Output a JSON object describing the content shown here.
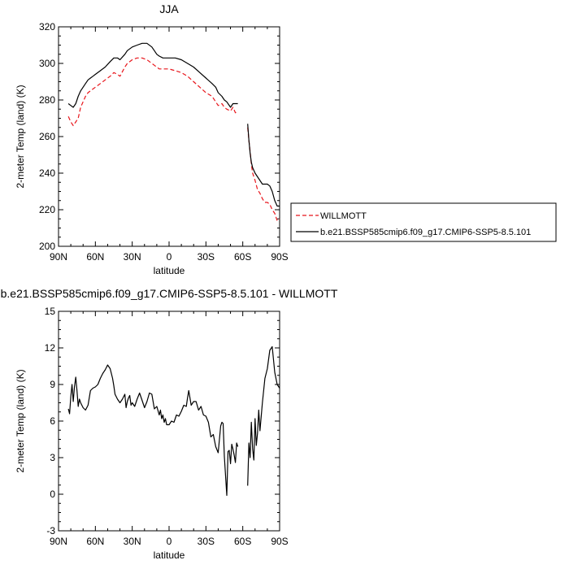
{
  "chart_data": [
    {
      "type": "line",
      "title": "JJA",
      "xlabel": "latitude",
      "ylabel": "2-meter Temp (land) (K)",
      "xlim": [
        90,
        -90
      ],
      "ylim": [
        200,
        320
      ],
      "x_ticks": [
        "90N",
        "60N",
        "30N",
        "0",
        "30S",
        "60S",
        "90S"
      ],
      "y_ticks": [
        "200",
        "220",
        "240",
        "260",
        "280",
        "300",
        "320"
      ],
      "legend_position": "right",
      "series": [
        {
          "name": "WILLMOTT",
          "color": "#e8151b",
          "style": "dashed",
          "segments": [
            {
              "x": [
                82,
                80,
                78,
                76,
                74,
                72,
                70,
                68,
                66,
                64,
                62,
                60,
                56,
                52,
                48,
                45,
                42,
                40,
                36,
                34,
                30,
                26,
                22,
                18,
                14,
                12,
                10,
                8,
                5,
                0,
                -5,
                -10,
                -15,
                -20,
                -25,
                -30,
                -35,
                -38,
                -40,
                -43,
                -45,
                -47,
                -50,
                -52,
                -54,
                -56
              ],
              "y": [
                271,
                268,
                266,
                268,
                270,
                276,
                279,
                282,
                284,
                285,
                286,
                287,
                289,
                291,
                293,
                295,
                294,
                293,
                298,
                300,
                302,
                303,
                303,
                302,
                300,
                299,
                298,
                297,
                297,
                297,
                296,
                295,
                293,
                290,
                287,
                284,
                282,
                279,
                277,
                278,
                276,
                275,
                274,
                276,
                273,
                274
              ]
            },
            {
              "x": [
                -64,
                -65,
                -66,
                -67,
                -68,
                -70,
                -72,
                -74,
                -76,
                -78,
                -80,
                -82,
                -84,
                -86,
                -88,
                -90
              ],
              "y": [
                265,
                258,
                252,
                245,
                240,
                236,
                231,
                229,
                226,
                224,
                224,
                223,
                220,
                218,
                214,
                215
              ]
            }
          ]
        },
        {
          "name": "b.e21.BSSP585cmip6.f09_g17.CMIP6-SSP5-8.5.101",
          "color": "#000000",
          "style": "solid",
          "segments": [
            {
              "x": [
                82,
                80,
                78,
                76,
                74,
                72,
                70,
                68,
                66,
                64,
                62,
                60,
                56,
                52,
                48,
                45,
                42,
                40,
                36,
                34,
                30,
                26,
                22,
                18,
                14,
                12,
                10,
                8,
                5,
                0,
                -5,
                -10,
                -15,
                -20,
                -25,
                -30,
                -35,
                -38,
                -40,
                -43,
                -45,
                -47,
                -50,
                -52,
                -54,
                -56
              ],
              "y": [
                278,
                277,
                276,
                278,
                282,
                285,
                287,
                289,
                291,
                292,
                293,
                294,
                296,
                298,
                301,
                303,
                303,
                302,
                305,
                307,
                309,
                310,
                311,
                311,
                309,
                307,
                305,
                304,
                303,
                303,
                303,
                302,
                300,
                298,
                295,
                292,
                289,
                287,
                284,
                282,
                280,
                279,
                276,
                278,
                278,
                278
              ]
            },
            {
              "x": [
                -64,
                -65,
                -66,
                -67,
                -68,
                -70,
                -72,
                -74,
                -76,
                -78,
                -80,
                -82,
                -84,
                -86,
                -88,
                -90
              ],
              "y": [
                267,
                258,
                251,
                246,
                243,
                240,
                238,
                236,
                234,
                234,
                234,
                233,
                230,
                225,
                222,
                222
              ]
            }
          ]
        }
      ]
    },
    {
      "type": "line",
      "title": "b.e21.BSSP585cmip6.f09_g17.CMIP6-SSP5-8.5.101 - WILLMOTT",
      "xlabel": "latitude",
      "ylabel": "2-meter Temp (land) (K)",
      "xlim": [
        90,
        -90
      ],
      "ylim": [
        -3,
        15
      ],
      "x_ticks": [
        "90N",
        "60N",
        "30N",
        "0",
        "30S",
        "60S",
        "90S"
      ],
      "y_ticks": [
        "-3",
        "0",
        "3",
        "6",
        "9",
        "12",
        "15"
      ],
      "series": [
        {
          "color": "#000000",
          "style": "solid",
          "segments": [
            {
              "x": [
                82,
                81,
                80,
                79,
                78,
                77,
                76,
                75,
                74,
                73,
                72,
                70,
                68,
                66,
                64,
                62,
                60,
                58,
                56,
                54,
                52,
                50,
                48,
                46,
                45,
                44,
                42,
                40,
                38,
                36,
                35,
                34,
                33,
                32,
                31,
                30,
                28,
                26,
                24,
                22,
                21,
                20,
                18,
                16,
                14,
                12,
                10,
                8,
                7,
                6,
                5,
                4,
                3,
                2,
                0,
                -2,
                -4,
                -6,
                -8,
                -10,
                -12,
                -14,
                -15,
                -16,
                -18,
                -20,
                -22,
                -24,
                -26,
                -28,
                -30,
                -32,
                -34,
                -36,
                -38,
                -40,
                -42,
                -43,
                -44,
                -45,
                -46,
                -47,
                -48,
                -49,
                -50,
                -51,
                -52,
                -53,
                -54,
                -55,
                -56
              ],
              "y": [
                7.0,
                6.6,
                8.0,
                9.0,
                7.6,
                8.8,
                9.6,
                8.5,
                7.2,
                7.8,
                7.5,
                7.1,
                6.9,
                7.3,
                8.5,
                8.7,
                8.8,
                9.0,
                9.5,
                9.9,
                10.2,
                10.6,
                10.3,
                9.5,
                8.9,
                8.2,
                7.8,
                7.5,
                7.8,
                8.2,
                7.1,
                7.6,
                7.9,
                8.1,
                7.3,
                7.5,
                7.2,
                7.8,
                8.3,
                7.7,
                7.4,
                7.1,
                7.6,
                8.3,
                8.2,
                7.0,
                7.2,
                6.5,
                6.9,
                6.2,
                6.5,
                5.9,
                6.2,
                5.7,
                5.7,
                6.0,
                5.9,
                6.5,
                6.4,
                6.8,
                7.3,
                7.2,
                7.9,
                8.5,
                7.3,
                7.6,
                7.6,
                6.9,
                7.2,
                6.5,
                6.4,
                5.9,
                4.7,
                4.9,
                3.9,
                3.4,
                5.6,
                5.9,
                5.8,
                3.1,
                1.5,
                -0.1,
                3.5,
                3.6,
                2.5,
                4.1,
                3.7,
                3.2,
                2.6,
                4.2,
                3.9
              ]
            },
            {
              "x": [
                -64,
                -65,
                -66,
                -67,
                -68,
                -69,
                -70,
                -71,
                -72,
                -73,
                -74,
                -76,
                -78,
                -80,
                -82,
                -84,
                -86,
                -88,
                -90
              ],
              "y": [
                0.7,
                4.2,
                3.0,
                5.9,
                3.7,
                2.8,
                6.2,
                4.0,
                5.0,
                6.9,
                5.2,
                7.5,
                9.5,
                10.3,
                11.8,
                12.1,
                10.0,
                9.0,
                8.7
              ]
            }
          ]
        }
      ]
    }
  ]
}
